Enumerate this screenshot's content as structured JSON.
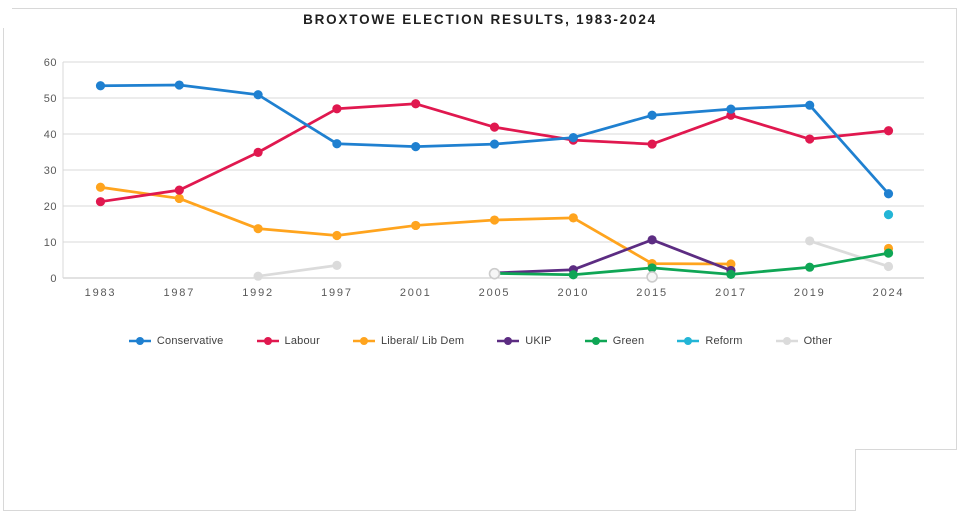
{
  "title": "BROXTOWE ELECTION RESULTS, 1983-2024",
  "chart_data": {
    "type": "line",
    "title": "BROXTOWE ELECTION RESULTS, 1983-2024",
    "xlabel": "",
    "ylabel": "",
    "ylim": [
      0,
      60
    ],
    "y_ticks": [
      0,
      10,
      20,
      30,
      40,
      50,
      60
    ],
    "grid": true,
    "legend_position": "bottom",
    "categories": [
      "1983",
      "1987",
      "1992",
      "1997",
      "2001",
      "2005",
      "2010",
      "2015",
      "2017",
      "2019",
      "2024"
    ],
    "series": [
      {
        "name": "Conservative",
        "color": "#1f80d0",
        "values": [
          53.4,
          53.6,
          50.9,
          37.3,
          36.5,
          37.2,
          39.0,
          45.2,
          46.9,
          48.0,
          23.4
        ]
      },
      {
        "name": "Labour",
        "color": "#e0184f",
        "values": [
          21.2,
          24.4,
          34.9,
          47.0,
          48.4,
          41.9,
          38.3,
          37.2,
          45.2,
          38.6,
          40.9
        ]
      },
      {
        "name": "Liberal/ Lib Dem",
        "color": "#ffa41e",
        "values": [
          25.2,
          22.1,
          13.7,
          11.8,
          14.6,
          16.1,
          16.7,
          4.0,
          3.9,
          null,
          8.2
        ]
      },
      {
        "name": "UKIP",
        "color": "#5c2c82",
        "values": [
          null,
          null,
          null,
          null,
          null,
          1.4,
          2.3,
          10.6,
          2.1,
          null,
          null
        ]
      },
      {
        "name": "Green",
        "color": "#0fa655",
        "values": [
          null,
          null,
          null,
          null,
          null,
          1.3,
          0.9,
          2.8,
          1.0,
          3.0,
          6.9
        ]
      },
      {
        "name": "Reform",
        "color": "#23b5d6",
        "values": [
          null,
          null,
          null,
          null,
          null,
          null,
          null,
          null,
          null,
          null,
          17.6
        ]
      },
      {
        "name": "Other",
        "color": "#dbdbdb",
        "values": [
          null,
          null,
          0.5,
          3.5,
          null,
          1.2,
          null,
          0.3,
          null,
          10.3,
          3.2
        ],
        "open_points": [
          5,
          7
        ]
      }
    ]
  }
}
